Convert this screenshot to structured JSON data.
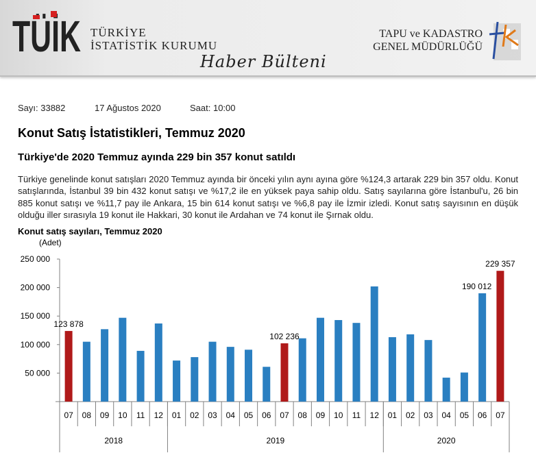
{
  "header": {
    "tuik_line1": "TÜRKİYE",
    "tuik_line2": "İSTATİSTİK KURUMU",
    "tuik_logo_text": "TÜİK",
    "bulletin": "Haber Bülteni",
    "tkgm_line1": "TAPU ve KADASTRO",
    "tkgm_line2": "GENEL MÜDÜRLÜĞÜ",
    "tkgm_logo_text": "tk"
  },
  "meta": {
    "number": "Sayı: 33882",
    "date": "17 Ağustos 2020",
    "time": "Saat: 10:00"
  },
  "title": "Konut Satış İstatistikleri, Temmuz 2020",
  "subtitle": "Türkiye'de 2020 Temmuz ayında 229 bin 357 konut satıldı",
  "paragraph": "Türkiye genelinde konut satışları 2020 Temmuz ayında bir önceki yılın aynı ayına göre %124,3 artarak 229 bin 357 oldu. Konut satışlarında, İstanbul 39 bin 432 konut satışı ve %17,2 ile en yüksek paya sahip oldu. Satış sayılarına göre İstanbul'u, 26 bin 885 konut satışı ve %11,7 pay ile Ankara, 15 bin 614 konut satışı ve %6,8 pay ile İzmir izledi. Konut satış sayısının en düşük olduğu iller sırasıyla 19 konut ile Hakkari, 30 konut ile Ardahan ve 74 konut ile Şırnak oldu.",
  "chart_data": {
    "type": "bar",
    "title": "Konut satış sayıları, Temmuz 2020",
    "ylabel": "(Adet)",
    "ylim": [
      0,
      250000
    ],
    "yticks": [
      "50 000",
      "100 000",
      "150 000",
      "200 000",
      "250 000"
    ],
    "ytick_values": [
      50000,
      100000,
      150000,
      200000,
      250000
    ],
    "categories": [
      "07",
      "08",
      "09",
      "10",
      "11",
      "12",
      "01",
      "02",
      "03",
      "04",
      "05",
      "06",
      "07",
      "08",
      "09",
      "10",
      "11",
      "12",
      "01",
      "02",
      "03",
      "04",
      "05",
      "06",
      "07"
    ],
    "years": [
      {
        "label": "2018",
        "count": 6
      },
      {
        "label": "2019",
        "count": 12
      },
      {
        "label": "2020",
        "count": 7
      }
    ],
    "values": [
      123878,
      105000,
      127000,
      147000,
      89000,
      137000,
      72000,
      78000,
      105000,
      96000,
      91000,
      61000,
      102236,
      111000,
      147000,
      143000,
      138000,
      202000,
      113000,
      118000,
      108000,
      42000,
      51000,
      190012,
      229357
    ],
    "highlight": [
      0,
      12,
      24
    ],
    "data_labels": {
      "0": "123 878",
      "12": "102 236",
      "23": "190 012",
      "24": "229 357"
    },
    "colors": {
      "bar": "#2a7fc1",
      "highlight": "#b01a1a",
      "axis": "#808080"
    }
  }
}
